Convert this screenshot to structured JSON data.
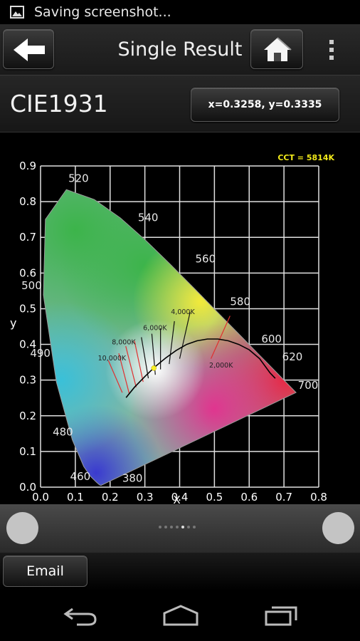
{
  "status": {
    "text": "Saving screenshot..."
  },
  "header": {
    "title": "Single Result"
  },
  "info": {
    "label": "CIE1931",
    "coordinates": "x=0.3258, y=0.3335"
  },
  "chart_data": {
    "type": "scatter",
    "cct_label": "CCT = 5814K",
    "xlabel": "X",
    "ylabel": "y",
    "xlim": [
      0.0,
      0.8
    ],
    "ylim": [
      0.0,
      0.9
    ],
    "x_ticks": [
      "0.0",
      "0.1",
      "0.2",
      "0.3",
      "0.4",
      "0.5",
      "0.6",
      "0.7",
      "0.8"
    ],
    "y_ticks": [
      "0.0",
      "0.1",
      "0.2",
      "0.3",
      "0.4",
      "0.5",
      "0.6",
      "0.7",
      "0.8",
      "0.9"
    ],
    "grid": true,
    "measured_point": {
      "x": 0.3258,
      "y": 0.3335
    },
    "wavelength_labels": [
      {
        "text": "520",
        "x": 0.08,
        "y": 0.855
      },
      {
        "text": "540",
        "x": 0.28,
        "y": 0.745
      },
      {
        "text": "560",
        "x": 0.445,
        "y": 0.63
      },
      {
        "text": "580",
        "x": 0.545,
        "y": 0.51
      },
      {
        "text": "600",
        "x": 0.635,
        "y": 0.405
      },
      {
        "text": "620",
        "x": 0.695,
        "y": 0.355
      },
      {
        "text": "700",
        "x": 0.74,
        "y": 0.275
      },
      {
        "text": "500",
        "x": -0.055,
        "y": 0.555
      },
      {
        "text": "490",
        "x": -0.03,
        "y": 0.365
      },
      {
        "text": "480",
        "x": 0.035,
        "y": 0.145
      },
      {
        "text": "460",
        "x": 0.085,
        "y": 0.02
      },
      {
        "text": "380",
        "x": 0.235,
        "y": 0.015
      }
    ],
    "cct_labels": [
      {
        "text": "4,000K",
        "x": 0.375,
        "y": 0.485
      },
      {
        "text": "6,000K",
        "x": 0.295,
        "y": 0.44
      },
      {
        "text": "8,000K",
        "x": 0.205,
        "y": 0.4
      },
      {
        "text": "10,000K",
        "x": 0.165,
        "y": 0.355
      },
      {
        "text": "2,000K",
        "x": 0.485,
        "y": 0.335
      }
    ],
    "planckian_locus": [
      [
        0.246,
        0.251
      ],
      [
        0.27,
        0.28
      ],
      [
        0.3,
        0.31
      ],
      [
        0.33,
        0.338
      ],
      [
        0.36,
        0.362
      ],
      [
        0.39,
        0.383
      ],
      [
        0.42,
        0.4
      ],
      [
        0.45,
        0.41
      ],
      [
        0.48,
        0.415
      ],
      [
        0.51,
        0.415
      ],
      [
        0.54,
        0.41
      ],
      [
        0.57,
        0.4
      ],
      [
        0.6,
        0.385
      ],
      [
        0.63,
        0.36
      ],
      [
        0.66,
        0.32
      ],
      [
        0.675,
        0.305
      ]
    ],
    "spectral_locus": [
      [
        0.1741,
        0.005
      ],
      [
        0.1703,
        0.0058
      ],
      [
        0.1666,
        0.0089
      ],
      [
        0.1611,
        0.0138
      ],
      [
        0.144,
        0.0297
      ],
      [
        0.1241,
        0.0578
      ],
      [
        0.0913,
        0.1327
      ],
      [
        0.0454,
        0.295
      ],
      [
        0.0082,
        0.5384
      ],
      [
        0.0139,
        0.7502
      ],
      [
        0.0743,
        0.8338
      ],
      [
        0.1547,
        0.8059
      ],
      [
        0.2296,
        0.7543
      ],
      [
        0.3016,
        0.6923
      ],
      [
        0.3731,
        0.6245
      ],
      [
        0.4441,
        0.5547
      ],
      [
        0.5125,
        0.4866
      ],
      [
        0.5752,
        0.4242
      ],
      [
        0.627,
        0.3725
      ],
      [
        0.6658,
        0.334
      ],
      [
        0.6915,
        0.3083
      ],
      [
        0.7079,
        0.292
      ],
      [
        0.7347,
        0.2653
      ]
    ]
  },
  "pager": {
    "dot_count": 7,
    "active_index": 4
  },
  "footer": {
    "email_label": "Email"
  }
}
